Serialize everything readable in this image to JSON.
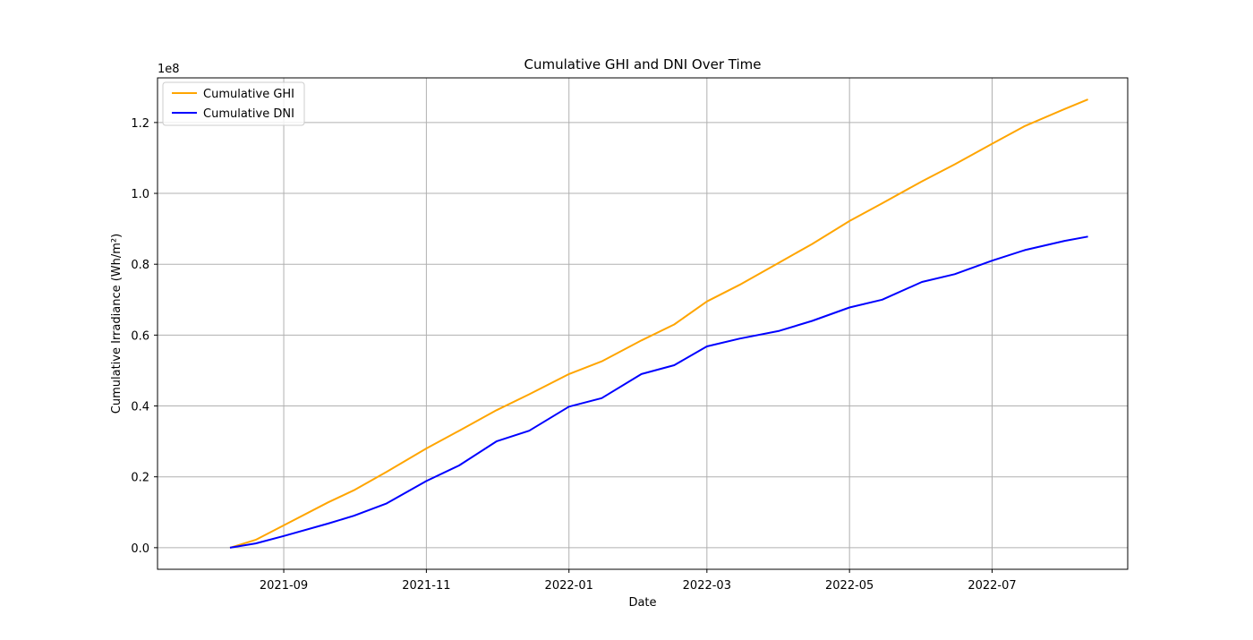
{
  "chart_data": {
    "type": "line",
    "title": "Cumulative GHI and DNI Over Time",
    "xlabel": "Date",
    "ylabel": "Cumulative Irradiance (Wh/m²)",
    "y_multiplier_label": "1e8",
    "y_multiplier": 100000000,
    "xlim": [
      "2021-07-09",
      "2022-08-28"
    ],
    "ylim": [
      -0.061,
      1.326
    ],
    "x_ticks": [
      {
        "date": "2021-09-01",
        "label": "2021-09"
      },
      {
        "date": "2021-11-01",
        "label": "2021-11"
      },
      {
        "date": "2022-01-01",
        "label": "2022-01"
      },
      {
        "date": "2022-03-01",
        "label": "2022-03"
      },
      {
        "date": "2022-05-01",
        "label": "2022-05"
      },
      {
        "date": "2022-07-01",
        "label": "2022-07"
      }
    ],
    "y_ticks": [
      {
        "value": 0.0,
        "label": "0.0"
      },
      {
        "value": 0.2,
        "label": "0.2"
      },
      {
        "value": 0.4,
        "label": "0.4"
      },
      {
        "value": 0.6,
        "label": "0.6"
      },
      {
        "value": 0.8,
        "label": "0.8"
      },
      {
        "value": 1.0,
        "label": "1.0"
      },
      {
        "value": 1.2,
        "label": "1.2"
      }
    ],
    "grid": true,
    "legend_position": "top-left",
    "series": [
      {
        "name": "Cumulative GHI",
        "color": "#ffa500",
        "points": [
          [
            "2021-08-09",
            0.0
          ],
          [
            "2021-08-20",
            0.022
          ],
          [
            "2021-09-01",
            0.063
          ],
          [
            "2021-09-20",
            0.128
          ],
          [
            "2021-10-01",
            0.162
          ],
          [
            "2021-10-15",
            0.214
          ],
          [
            "2021-11-01",
            0.28
          ],
          [
            "2021-11-15",
            0.33
          ],
          [
            "2021-12-01",
            0.388
          ],
          [
            "2021-12-15",
            0.433
          ],
          [
            "2022-01-01",
            0.49
          ],
          [
            "2022-01-15",
            0.526
          ],
          [
            "2022-02-01",
            0.585
          ],
          [
            "2022-02-15",
            0.63
          ],
          [
            "2022-03-01",
            0.695
          ],
          [
            "2022-03-15",
            0.742
          ],
          [
            "2022-04-01",
            0.805
          ],
          [
            "2022-04-15",
            0.857
          ],
          [
            "2022-05-01",
            0.922
          ],
          [
            "2022-05-15",
            0.972
          ],
          [
            "2022-06-01",
            1.034
          ],
          [
            "2022-06-15",
            1.082
          ],
          [
            "2022-07-01",
            1.14
          ],
          [
            "2022-07-15",
            1.19
          ],
          [
            "2022-08-01",
            1.238
          ],
          [
            "2022-08-11",
            1.265
          ]
        ]
      },
      {
        "name": "Cumulative DNI",
        "color": "#0000ff",
        "points": [
          [
            "2021-08-09",
            0.0
          ],
          [
            "2021-08-20",
            0.012
          ],
          [
            "2021-09-01",
            0.033
          ],
          [
            "2021-09-20",
            0.068
          ],
          [
            "2021-10-01",
            0.09
          ],
          [
            "2021-10-15",
            0.125
          ],
          [
            "2021-11-01",
            0.188
          ],
          [
            "2021-11-15",
            0.232
          ],
          [
            "2021-12-01",
            0.3
          ],
          [
            "2021-12-15",
            0.33
          ],
          [
            "2022-01-01",
            0.398
          ],
          [
            "2022-01-15",
            0.422
          ],
          [
            "2022-02-01",
            0.49
          ],
          [
            "2022-02-15",
            0.515
          ],
          [
            "2022-03-01",
            0.568
          ],
          [
            "2022-03-15",
            0.59
          ],
          [
            "2022-04-01",
            0.612
          ],
          [
            "2022-04-15",
            0.64
          ],
          [
            "2022-05-01",
            0.678
          ],
          [
            "2022-05-15",
            0.7
          ],
          [
            "2022-06-01",
            0.75
          ],
          [
            "2022-06-15",
            0.772
          ],
          [
            "2022-07-01",
            0.81
          ],
          [
            "2022-07-15",
            0.84
          ],
          [
            "2022-08-01",
            0.866
          ],
          [
            "2022-08-11",
            0.878
          ]
        ]
      }
    ]
  }
}
